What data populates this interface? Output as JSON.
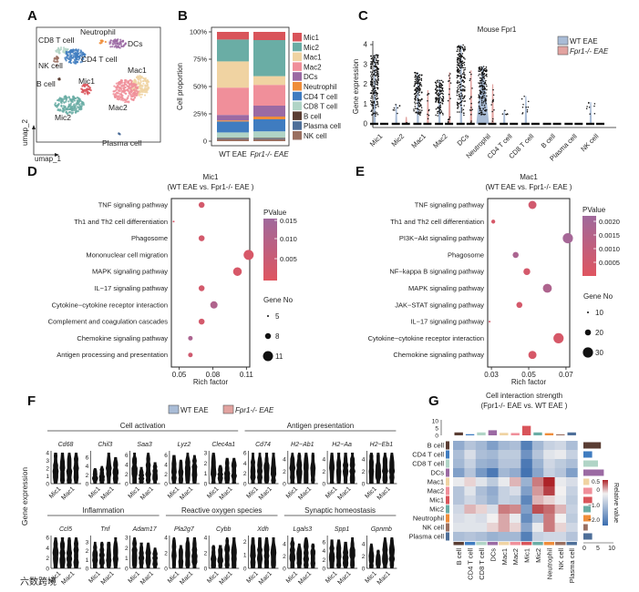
{
  "colors": {
    "Mic1": "#d9545a",
    "Mic2": "#6aada5",
    "Mac1": "#f0d3a2",
    "Mac2": "#f08f9a",
    "DCs": "#9b6aa3",
    "Neutrophil": "#ef8d3a",
    "CD4 T cell": "#3f7cc0",
    "CD8 T cell": "#b0d4c6",
    "B cell": "#5a3d33",
    "Plasma cell": "#4e6f99",
    "NK cell": "#9a6f60",
    "wt": "#a9bcd6",
    "ko": "#e2a3a0"
  },
  "watermark": "六数跨境",
  "chart_data": [
    {
      "panel": "A",
      "type": "scatter",
      "title": "",
      "xlabel": "umap_1",
      "ylabel": "umap_2",
      "clusters": [
        "Neutrophil",
        "CD8 T cell",
        "DCs",
        "CD4 T cell",
        "NK cell",
        "Mac1",
        "B cell",
        "Mic1",
        "Mac2",
        "Mic2",
        "Plasma cell"
      ]
    },
    {
      "panel": "B",
      "type": "bar",
      "stacked": true,
      "ylabel": "Cell proportion",
      "yticks": [
        "0",
        "25%",
        "50%",
        "75%",
        "100%"
      ],
      "ylim": [
        0,
        100
      ],
      "categories": [
        "WT EAE",
        "Fpr1-/- EAE"
      ],
      "legend": [
        "Mic1",
        "Mic2",
        "Mac1",
        "Mac2",
        "DCs",
        "Neutrophil",
        "CD4 T cell",
        "CD8 T cell",
        "B cell",
        "Plasma cell",
        "NK cell"
      ],
      "series": [
        {
          "name": "NK cell",
          "values": [
            2,
            2
          ]
        },
        {
          "name": "Plasma cell",
          "values": [
            0.5,
            0.5
          ]
        },
        {
          "name": "B cell",
          "values": [
            0.5,
            0.5
          ]
        },
        {
          "name": "CD8 T cell",
          "values": [
            5,
            6
          ]
        },
        {
          "name": "CD4 T cell",
          "values": [
            10,
            11
          ]
        },
        {
          "name": "Neutrophil",
          "values": [
            1,
            2.5
          ]
        },
        {
          "name": "DCs",
          "values": [
            5,
            10
          ]
        },
        {
          "name": "Mac2",
          "values": [
            25,
            19
          ]
        },
        {
          "name": "Mac1",
          "values": [
            24,
            8
          ]
        },
        {
          "name": "Mic2",
          "values": [
            20,
            33
          ]
        },
        {
          "name": "Mic1",
          "values": [
            7,
            7.5
          ]
        }
      ]
    },
    {
      "panel": "C",
      "type": "scatter",
      "title": "Mouse Fpr1",
      "ylabel": "Gene expression",
      "yticks": [
        0,
        1,
        2,
        3,
        4
      ],
      "ylim": [
        0,
        4
      ],
      "legend": [
        "WT EAE",
        "Fpr1-/- EAE"
      ],
      "categories": [
        "Mic1",
        "Mic2",
        "Mac1",
        "Mac2",
        "DCs",
        "Neutrophil",
        "CD4 T cell",
        "CD8 T cell",
        "B cell",
        "Plasma cell",
        "NK cell"
      ],
      "series": [
        {
          "name": "WT EAE",
          "max": [
            3.5,
            1.0,
            2.6,
            2.2,
            4.0,
            2.9,
            0.7,
            1.4,
            0,
            0,
            1.1
          ]
        },
        {
          "name": "Fpr1-/- EAE",
          "max": [
            0,
            0.35,
            1.7,
            2.6,
            2.7,
            2.0,
            0,
            0,
            0,
            0,
            0
          ]
        }
      ]
    },
    {
      "panel": "D",
      "type": "scatter",
      "title": "Mic1",
      "subtitle": "(WT EAE vs. Fpr1-/- EAE )",
      "xlabel": "Rich factor",
      "xticks": [
        0.05,
        0.08,
        0.11
      ],
      "xlim": [
        0.043,
        0.113
      ],
      "colorbar_title": "PValue",
      "colorbar_ticks": [
        "0.015",
        "0.010",
        "0.005"
      ],
      "pmax": 0.016,
      "size_title": "Gene No",
      "size_ticks": [
        5,
        8,
        11
      ],
      "terms": [
        {
          "name": "TNF signaling pathway",
          "rich": 0.07,
          "p": 0.003,
          "genes": 8
        },
        {
          "name": "Th1 and Th2 cell differentiation",
          "rich": 0.045,
          "p": 0.002,
          "genes": 5
        },
        {
          "name": "Phagosome",
          "rich": 0.07,
          "p": 0.003,
          "genes": 8
        },
        {
          "name": "Mononuclear cell migration",
          "rich": 0.112,
          "p": 0.002,
          "genes": 11
        },
        {
          "name": "MAPK signaling pathway",
          "rich": 0.102,
          "p": 0.002,
          "genes": 10
        },
        {
          "name": "IL−17 signaling pathway",
          "rich": 0.07,
          "p": 0.003,
          "genes": 8
        },
        {
          "name": "Cytokine−cytokine receptor interaction",
          "rich": 0.081,
          "p": 0.012,
          "genes": 9
        },
        {
          "name": "Complement and coagulation cascades",
          "rich": 0.07,
          "p": 0.003,
          "genes": 8
        },
        {
          "name": "Chemokine signaling pathway",
          "rich": 0.06,
          "p": 0.013,
          "genes": 7
        },
        {
          "name": "Antigen processing and presentation",
          "rich": 0.06,
          "p": 0.004,
          "genes": 7
        }
      ]
    },
    {
      "panel": "E",
      "type": "scatter",
      "title": "Mac1",
      "subtitle": "(WT EAE vs. Fpr1-/- EAE )",
      "xlabel": "Rich factor",
      "xticks": [
        0.03,
        0.05,
        0.07
      ],
      "xlim": [
        0.028,
        0.072
      ],
      "colorbar_title": "PValue",
      "colorbar_ticks": [
        "0.0020",
        "0.0015",
        "0.0010",
        "0.0005"
      ],
      "pmax": 0.0022,
      "size_title": "Gene No",
      "size_ticks": [
        10,
        20,
        30
      ],
      "terms": [
        {
          "name": "TNF signaling pathway",
          "rich": 0.052,
          "p": 0.0005,
          "genes": 25
        },
        {
          "name": "Th1 and Th2 cell differentiation",
          "rich": 0.031,
          "p": 0.0003,
          "genes": 15
        },
        {
          "name": "PI3K−Akt signaling pathway",
          "rich": 0.071,
          "p": 0.002,
          "genes": 30
        },
        {
          "name": "Phagosome",
          "rich": 0.043,
          "p": 0.0018,
          "genes": 20
        },
        {
          "name": "NF−kappa B signaling pathway",
          "rich": 0.049,
          "p": 0.0004,
          "genes": 22
        },
        {
          "name": "MAPK signaling pathway",
          "rich": 0.06,
          "p": 0.0017,
          "genes": 27
        },
        {
          "name": "JAK−STAT signaling pathway",
          "rich": 0.045,
          "p": 0.0004,
          "genes": 20
        },
        {
          "name": "IL−17 signaling pathway",
          "rich": 0.029,
          "p": 0.0002,
          "genes": 10
        },
        {
          "name": "Cytokine−cytokine receptor interaction",
          "rich": 0.066,
          "p": 0.0003,
          "genes": 30
        },
        {
          "name": "Chemokine signaling pathway",
          "rich": 0.052,
          "p": 0.0003,
          "genes": 25
        }
      ]
    },
    {
      "panel": "F",
      "type": "violin",
      "ylabel": "Gene expression",
      "legend": [
        "WT EAE",
        "Fpr1-/- EAE"
      ],
      "xcats": [
        "Mic1",
        "Mac1"
      ],
      "rows": [
        {
          "groups": [
            {
              "name": "Cell activation",
              "genes": 5
            },
            {
              "name": "Antigen presentation",
              "genes": 4
            }
          ],
          "genes": [
            {
              "name": "Cd68",
              "ticks": [
                0,
                1,
                2,
                3,
                4
              ],
              "max": [
                4,
                4,
                4,
                4
              ]
            },
            {
              "name": "Chil3",
              "ticks": [
                0,
                2,
                4,
                6
              ],
              "max": [
                3.5,
                4,
                7,
                6
              ]
            },
            {
              "name": "Saa3",
              "ticks": [
                0,
                2,
                4,
                6
              ],
              "max": [
                6.5,
                3.5,
                6.5,
                4.5
              ]
            },
            {
              "name": "Lyz2",
              "ticks": [
                0,
                2,
                4,
                6
              ],
              "max": [
                6,
                5,
                6.5,
                6
              ]
            },
            {
              "name": "Clec4a1",
              "ticks": [
                0,
                1,
                2,
                3
              ],
              "max": [
                3,
                1.8,
                2.5,
                2.5
              ]
            },
            {
              "name": "Cd74",
              "ticks": [
                0,
                2,
                4,
                6
              ],
              "max": [
                6,
                6,
                6,
                6
              ]
            },
            {
              "name": "H2−Ab1",
              "ticks": [
                0,
                2,
                4
              ],
              "max": [
                5,
                5,
                5,
                5
              ]
            },
            {
              "name": "H2−Aa",
              "ticks": [
                0,
                2,
                4
              ],
              "max": [
                5,
                5,
                5,
                5
              ]
            },
            {
              "name": "H2−Eb1",
              "ticks": [
                0,
                2,
                4
              ],
              "max": [
                5,
                5,
                5,
                5
              ]
            }
          ]
        },
        {
          "groups": [
            {
              "name": "Inflammation",
              "genes": 3
            },
            {
              "name": "Reactive oxygen  species",
              "genes": 3
            },
            {
              "name": "Synaptic homeostasis",
              "genes": 3
            }
          ],
          "genes": [
            {
              "name": "Ccl5",
              "ticks": [
                0,
                2,
                4,
                6
              ],
              "max": [
                6,
                6,
                6,
                6
              ]
            },
            {
              "name": "Tnf",
              "ticks": [
                0,
                1,
                2,
                3
              ],
              "max": [
                3,
                3,
                3,
                3.5
              ]
            },
            {
              "name": "Adam17",
              "ticks": [
                0,
                1,
                2,
                3
              ],
              "max": [
                3,
                2.5,
                2.5,
                2
              ]
            },
            {
              "name": "Pla2g7",
              "ticks": [
                0,
                2,
                4
              ],
              "max": [
                4,
                3,
                4,
                4
              ]
            },
            {
              "name": "Cybb",
              "ticks": [
                0,
                2,
                4
              ],
              "max": [
                3,
                3,
                4,
                4
              ]
            },
            {
              "name": "Xdh",
              "ticks": [
                0,
                1,
                2
              ],
              "max": [
                2.3,
                2.3,
                2.3,
                2.3
              ]
            },
            {
              "name": "Lgals3",
              "ticks": [
                0,
                2,
                4
              ],
              "max": [
                5,
                4,
                5,
                4
              ]
            },
            {
              "name": "Spp1",
              "ticks": [
                0,
                2,
                4,
                6
              ],
              "max": [
                6.5,
                6.5,
                6,
                7
              ]
            },
            {
              "name": "Gpnmb",
              "ticks": [
                0,
                2,
                4
              ],
              "max": [
                4,
                3,
                5,
                5
              ]
            }
          ]
        }
      ]
    },
    {
      "panel": "G",
      "type": "heatmap",
      "title": "Cell interaction strength",
      "subtitle": "(Fpr1-/- EAE vs. WT EAE )",
      "colorbar_title": "Relative value",
      "colorbar_ticks": [
        "0.5",
        "0",
        "−1.0",
        "−2.0"
      ],
      "bar_ticks": [
        "0",
        "5",
        "10"
      ],
      "labels": [
        "B cell",
        "CD4 T cell",
        "CD8 T cell",
        "DCs",
        "Mac1",
        "Mac2",
        "Mic1",
        "Mic2",
        "Neutrophil",
        "NK cell",
        "Plasma cell"
      ],
      "top_bars": [
        2,
        0.8,
        2,
        3.5,
        1.7,
        1.6,
        6.5,
        2,
        1.5,
        0.7,
        2
      ],
      "right_bars": [
        6,
        3,
        5,
        7,
        2,
        3,
        3,
        2.5,
        2.5,
        1.5,
        3
      ],
      "values": [
        [
          -1.2,
          -0.8,
          -1.0,
          -1.4,
          -1.0,
          -0.9,
          -1.9,
          -1.0,
          -0.6,
          -0.5,
          -0.9
        ],
        [
          -0.9,
          -0.4,
          -0.9,
          -1.0,
          -0.7,
          -0.7,
          -1.6,
          -0.8,
          -0.3,
          -0.2,
          -0.6
        ],
        [
          -1.0,
          -0.6,
          -1.1,
          -1.2,
          -0.8,
          -0.8,
          -2.0,
          -1.1,
          -0.5,
          -0.7,
          -0.9
        ],
        [
          -1.4,
          -0.8,
          -1.5,
          -2.0,
          -1.0,
          -1.2,
          -2.1,
          -1.3,
          -0.6,
          -0.8,
          -1.4
        ],
        [
          -0.2,
          0.0,
          -0.3,
          -0.7,
          -0.2,
          0.1,
          -1.1,
          0.3,
          0.6,
          -0.2,
          -0.4
        ],
        [
          -0.8,
          -0.3,
          -0.9,
          -1.2,
          -0.6,
          -0.4,
          -1.4,
          0.2,
          0.5,
          -0.1,
          -0.6
        ],
        [
          -0.8,
          -0.5,
          -0.8,
          -1.1,
          -0.6,
          -0.7,
          -1.8,
          0.1,
          0.0,
          -0.2,
          -0.7
        ],
        [
          -0.5,
          0.1,
          0.0,
          -0.4,
          0.3,
          0.25,
          -1.4,
          0.45,
          0.35,
          0.1,
          -0.6
        ],
        [
          -0.4,
          -0.3,
          -0.4,
          -0.1,
          0.15,
          -0.2,
          -1.7,
          -0.9,
          0.3,
          -0.1,
          -0.7
        ],
        [
          -0.3,
          -0.3,
          -0.3,
          0.0,
          0.15,
          0.0,
          -1.3,
          -0.2,
          0.3,
          0.0,
          -0.5
        ],
        [
          -0.9,
          -0.8,
          -0.9,
          -1.1,
          -1.0,
          -1.0,
          -1.9,
          -0.6,
          -0.5,
          -0.5,
          -0.8
        ]
      ]
    }
  ]
}
